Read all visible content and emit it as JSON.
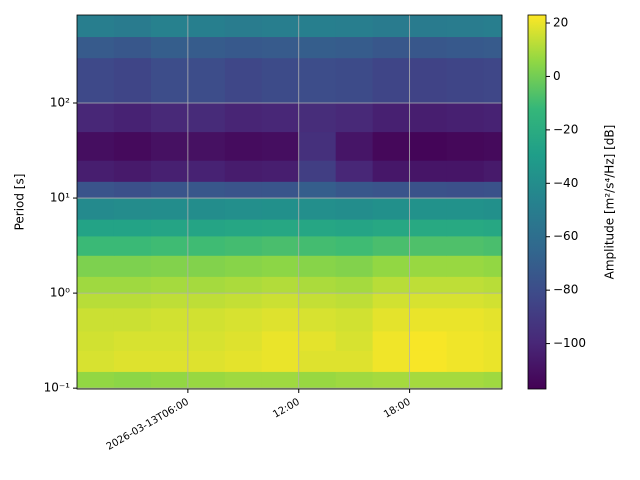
{
  "chart_data": {
    "type": "heatmap",
    "colormap": "viridis",
    "grid": true,
    "ylog": true,
    "ylabel": "Period [s]",
    "clabel": "Amplitude [m²/s⁴/Hz] [dB]",
    "xlim": [
      0,
      23
    ],
    "xticks": [
      {
        "value": 6,
        "label": "2026-03-13T06:00"
      },
      {
        "value": 12,
        "label": "12:00"
      },
      {
        "value": 18,
        "label": "18:00"
      }
    ],
    "ylim": [
      0.098,
      843
    ],
    "yticks": [
      {
        "value": 0.1,
        "label": "10⁻¹"
      },
      {
        "value": 1,
        "label": "10⁰"
      },
      {
        "value": 10,
        "label": "10¹"
      },
      {
        "value": 100,
        "label": "10²"
      }
    ],
    "clim": [
      -117,
      23
    ],
    "cticks": [
      {
        "value": -100,
        "label": "−100"
      },
      {
        "value": -80,
        "label": "−80"
      },
      {
        "value": -60,
        "label": "−60"
      },
      {
        "value": -40,
        "label": "−40"
      },
      {
        "value": -20,
        "label": "−20"
      },
      0,
      20
    ],
    "x_bins": [
      0,
      2,
      4,
      6,
      8,
      10,
      12,
      14,
      16,
      18,
      20,
      22,
      23
    ],
    "y_bins": [
      0.098,
      0.15,
      0.25,
      0.4,
      0.7,
      1,
      1.5,
      2.5,
      4,
      6,
      10,
      15,
      25,
      50,
      100,
      300,
      500,
      843
    ],
    "values": [
      [
        6,
        5,
        6,
        7,
        8,
        8,
        7,
        8,
        9,
        9,
        9,
        8
      ],
      [
        17,
        18,
        18,
        18,
        19,
        20,
        18,
        18,
        21,
        22,
        21,
        20
      ],
      [
        16,
        17,
        17,
        17,
        18,
        20,
        19,
        17,
        21,
        22,
        21,
        20
      ],
      [
        15,
        15,
        16,
        16,
        17,
        18,
        17,
        16,
        19,
        20,
        20,
        19
      ],
      [
        12,
        12,
        13,
        13,
        14,
        15,
        14,
        13,
        16,
        17,
        17,
        16
      ],
      [
        8,
        8,
        9,
        9,
        10,
        11,
        10,
        9,
        12,
        13,
        13,
        12
      ],
      [
        2,
        2,
        3,
        3,
        4,
        5,
        4,
        3,
        6,
        7,
        7,
        6
      ],
      [
        -11,
        -11,
        -10,
        -10,
        -9,
        -8,
        -9,
        -10,
        -8,
        -7,
        -7,
        -8
      ],
      [
        -26,
        -26,
        -25,
        -25,
        -24,
        -23,
        -24,
        -25,
        -23,
        -22,
        -22,
        -23
      ],
      [
        -42,
        -41,
        -40,
        -40,
        -39,
        -38,
        -39,
        -40,
        -38,
        -37,
        -37,
        -38
      ],
      [
        -76,
        -78,
        -75,
        -74,
        -76,
        -75,
        -70,
        -74,
        -76,
        -77,
        -78,
        -77
      ],
      [
        -104,
        -106,
        -103,
        -102,
        -105,
        -104,
        -88,
        -100,
        -107,
        -108,
        -108,
        -106
      ],
      [
        -111,
        -113,
        -110,
        -110,
        -112,
        -111,
        -95,
        -108,
        -114,
        -115,
        -114,
        -113
      ],
      [
        -100,
        -102,
        -99,
        -98,
        -101,
        -100,
        -97,
        -99,
        -103,
        -104,
        -103,
        -102
      ],
      [
        -82,
        -84,
        -80,
        -80,
        -83,
        -81,
        -80,
        -81,
        -84,
        -85,
        -84,
        -83
      ],
      [
        -72,
        -74,
        -70,
        -71,
        -73,
        -72,
        -70,
        -71,
        -74,
        -74,
        -73,
        -72
      ],
      [
        -50,
        -52,
        -48,
        -49,
        -51,
        -50,
        -49,
        -50,
        -52,
        -52,
        -51,
        -50
      ]
    ]
  }
}
